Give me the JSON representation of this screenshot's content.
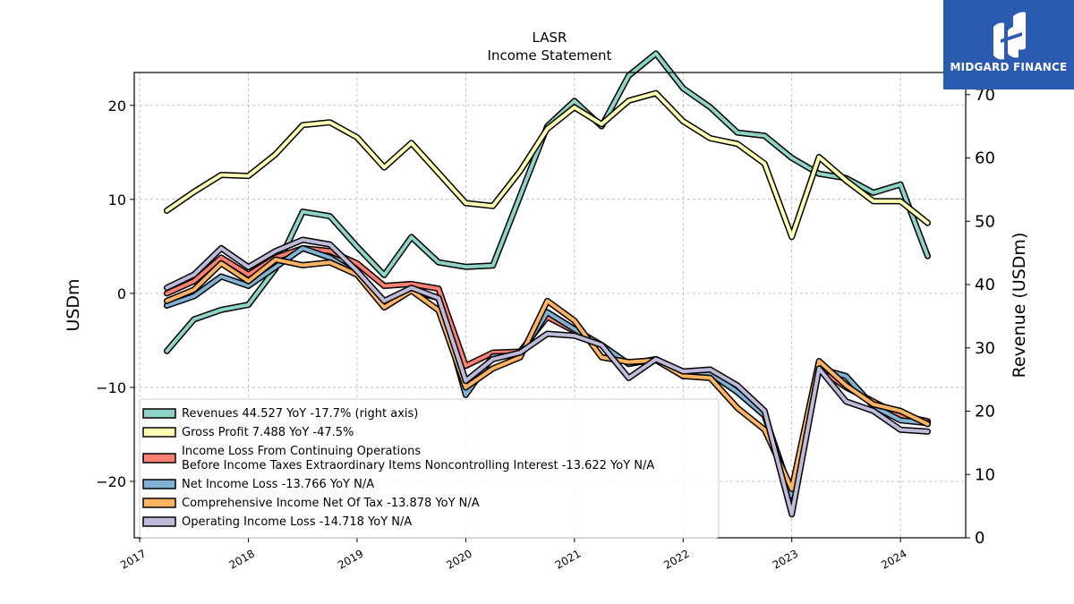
{
  "logo": {
    "text": "MIDGARD FINANCE"
  },
  "chart_data": {
    "type": "line",
    "title": "LASR",
    "subtitle": "Income Statement",
    "ylabel_left": "USDm",
    "ylabel_right": "Revenue (USDm)",
    "ylim_left": [
      -26,
      23.5
    ],
    "ylim_right": [
      0,
      73.5
    ],
    "yticks_left": [
      20,
      10,
      0,
      -10,
      -20
    ],
    "ytick_labels_left": [
      "20",
      "10",
      "0",
      "−10",
      "−20"
    ],
    "yticks_right": [
      70,
      60,
      50,
      40,
      30,
      20,
      10,
      0
    ],
    "xlim": [
      2016.95,
      2024.6
    ],
    "xticks": [
      2017,
      2018,
      2019,
      2020,
      2021,
      2022,
      2023,
      2024
    ],
    "xtick_labels": [
      "2017",
      "2018",
      "2019",
      "2020",
      "2021",
      "2022",
      "2023",
      "2024"
    ],
    "grid": true,
    "legend_position": "lower-left",
    "x": [
      2017.25,
      2017.5,
      2017.75,
      2018.0,
      2018.25,
      2018.5,
      2018.75,
      2019.0,
      2019.25,
      2019.5,
      2019.75,
      2020.0,
      2020.25,
      2020.5,
      2020.75,
      2021.0,
      2021.25,
      2021.5,
      2021.75,
      2022.0,
      2022.25,
      2022.5,
      2022.75,
      2023.0,
      2023.25,
      2023.5,
      2023.75,
      2024.0,
      2024.25
    ],
    "series": [
      {
        "name": "Revenues  44.527 YoY -17.7% (right axis)",
        "axis": "right",
        "color": "#8dd3c7",
        "values": [
          29.5,
          34.5,
          36.0,
          36.8,
          42.5,
          51.5,
          50.8,
          46.0,
          41.5,
          47.5,
          43.5,
          42.8,
          43.0,
          54.0,
          65.0,
          69.0,
          65.0,
          73.0,
          76.5,
          71.0,
          68.0,
          64.0,
          63.5,
          60.0,
          57.5,
          56.8,
          54.5,
          55.8,
          44.5
        ]
      },
      {
        "name": "Gross Profit  7.488 YoY -47.5%",
        "axis": "left",
        "color": "#ffffb3",
        "values": [
          8.8,
          10.8,
          12.6,
          12.5,
          14.8,
          17.9,
          18.2,
          16.6,
          13.4,
          16.0,
          12.8,
          9.6,
          9.3,
          13.0,
          17.5,
          19.8,
          18.0,
          20.5,
          21.3,
          18.3,
          16.5,
          15.9,
          13.8,
          6.0,
          14.5,
          12.0,
          9.8,
          9.8,
          7.5
        ]
      },
      {
        "name": "Income Loss From Continuing Operations Before Income Taxes Extraordinary Items Noncontrolling Interest  -13.622 YoY N/A",
        "label_lines": [
          "Income Loss From Continuing Operations",
          "Before Income Taxes Extraordinary Items Noncontrolling Interest  -13.622 YoY N/A"
        ],
        "axis": "left",
        "color": "#fb8072",
        "values": [
          0.0,
          1.3,
          3.8,
          2.0,
          3.8,
          4.8,
          4.5,
          3.2,
          0.8,
          1.0,
          0.5,
          -7.7,
          -6.3,
          -6.2,
          -2.5,
          -4.0,
          -5.5,
          -7.5,
          -7.0,
          -8.8,
          -8.5,
          -10.5,
          -13.0,
          -21.5,
          -8.0,
          -10.0,
          -11.5,
          -13.0,
          -13.6
        ]
      },
      {
        "name": "Net Income Loss  -13.766 YoY N/A",
        "axis": "left",
        "color": "#80b1d3",
        "values": [
          -1.3,
          -0.3,
          1.8,
          0.8,
          2.8,
          4.8,
          3.8,
          2.0,
          -0.8,
          0.3,
          -0.5,
          -10.8,
          -6.7,
          -6.6,
          -2.0,
          -3.8,
          -5.5,
          -7.5,
          -7.0,
          -8.8,
          -8.5,
          -10.5,
          -13.0,
          -21.5,
          -8.0,
          -8.8,
          -12.0,
          -13.5,
          -13.8
        ]
      },
      {
        "name": "Comprehensive Income Net Of Tax  -13.878 YoY N/A",
        "axis": "left",
        "color": "#fdb462",
        "values": [
          -0.8,
          0.4,
          3.2,
          1.3,
          3.6,
          3.0,
          3.3,
          2.0,
          -1.5,
          0.3,
          -1.8,
          -10.0,
          -8.0,
          -6.8,
          -0.8,
          -2.9,
          -6.8,
          -7.3,
          -7.1,
          -8.8,
          -9.0,
          -12.2,
          -14.5,
          -20.8,
          -7.2,
          -9.8,
          -11.8,
          -12.5,
          -13.9
        ]
      },
      {
        "name": "Operating Income Loss  -14.718 YoY N/A",
        "axis": "left",
        "color": "#bebada",
        "values": [
          0.6,
          2.0,
          4.8,
          2.8,
          4.5,
          5.7,
          5.2,
          2.4,
          -0.8,
          0.6,
          -0.5,
          -9.3,
          -7.0,
          -6.3,
          -4.3,
          -4.5,
          -5.5,
          -9.0,
          -7.0,
          -8.3,
          -8.1,
          -9.8,
          -12.5,
          -23.5,
          -8.0,
          -11.5,
          -12.5,
          -14.5,
          -14.7
        ]
      }
    ]
  }
}
